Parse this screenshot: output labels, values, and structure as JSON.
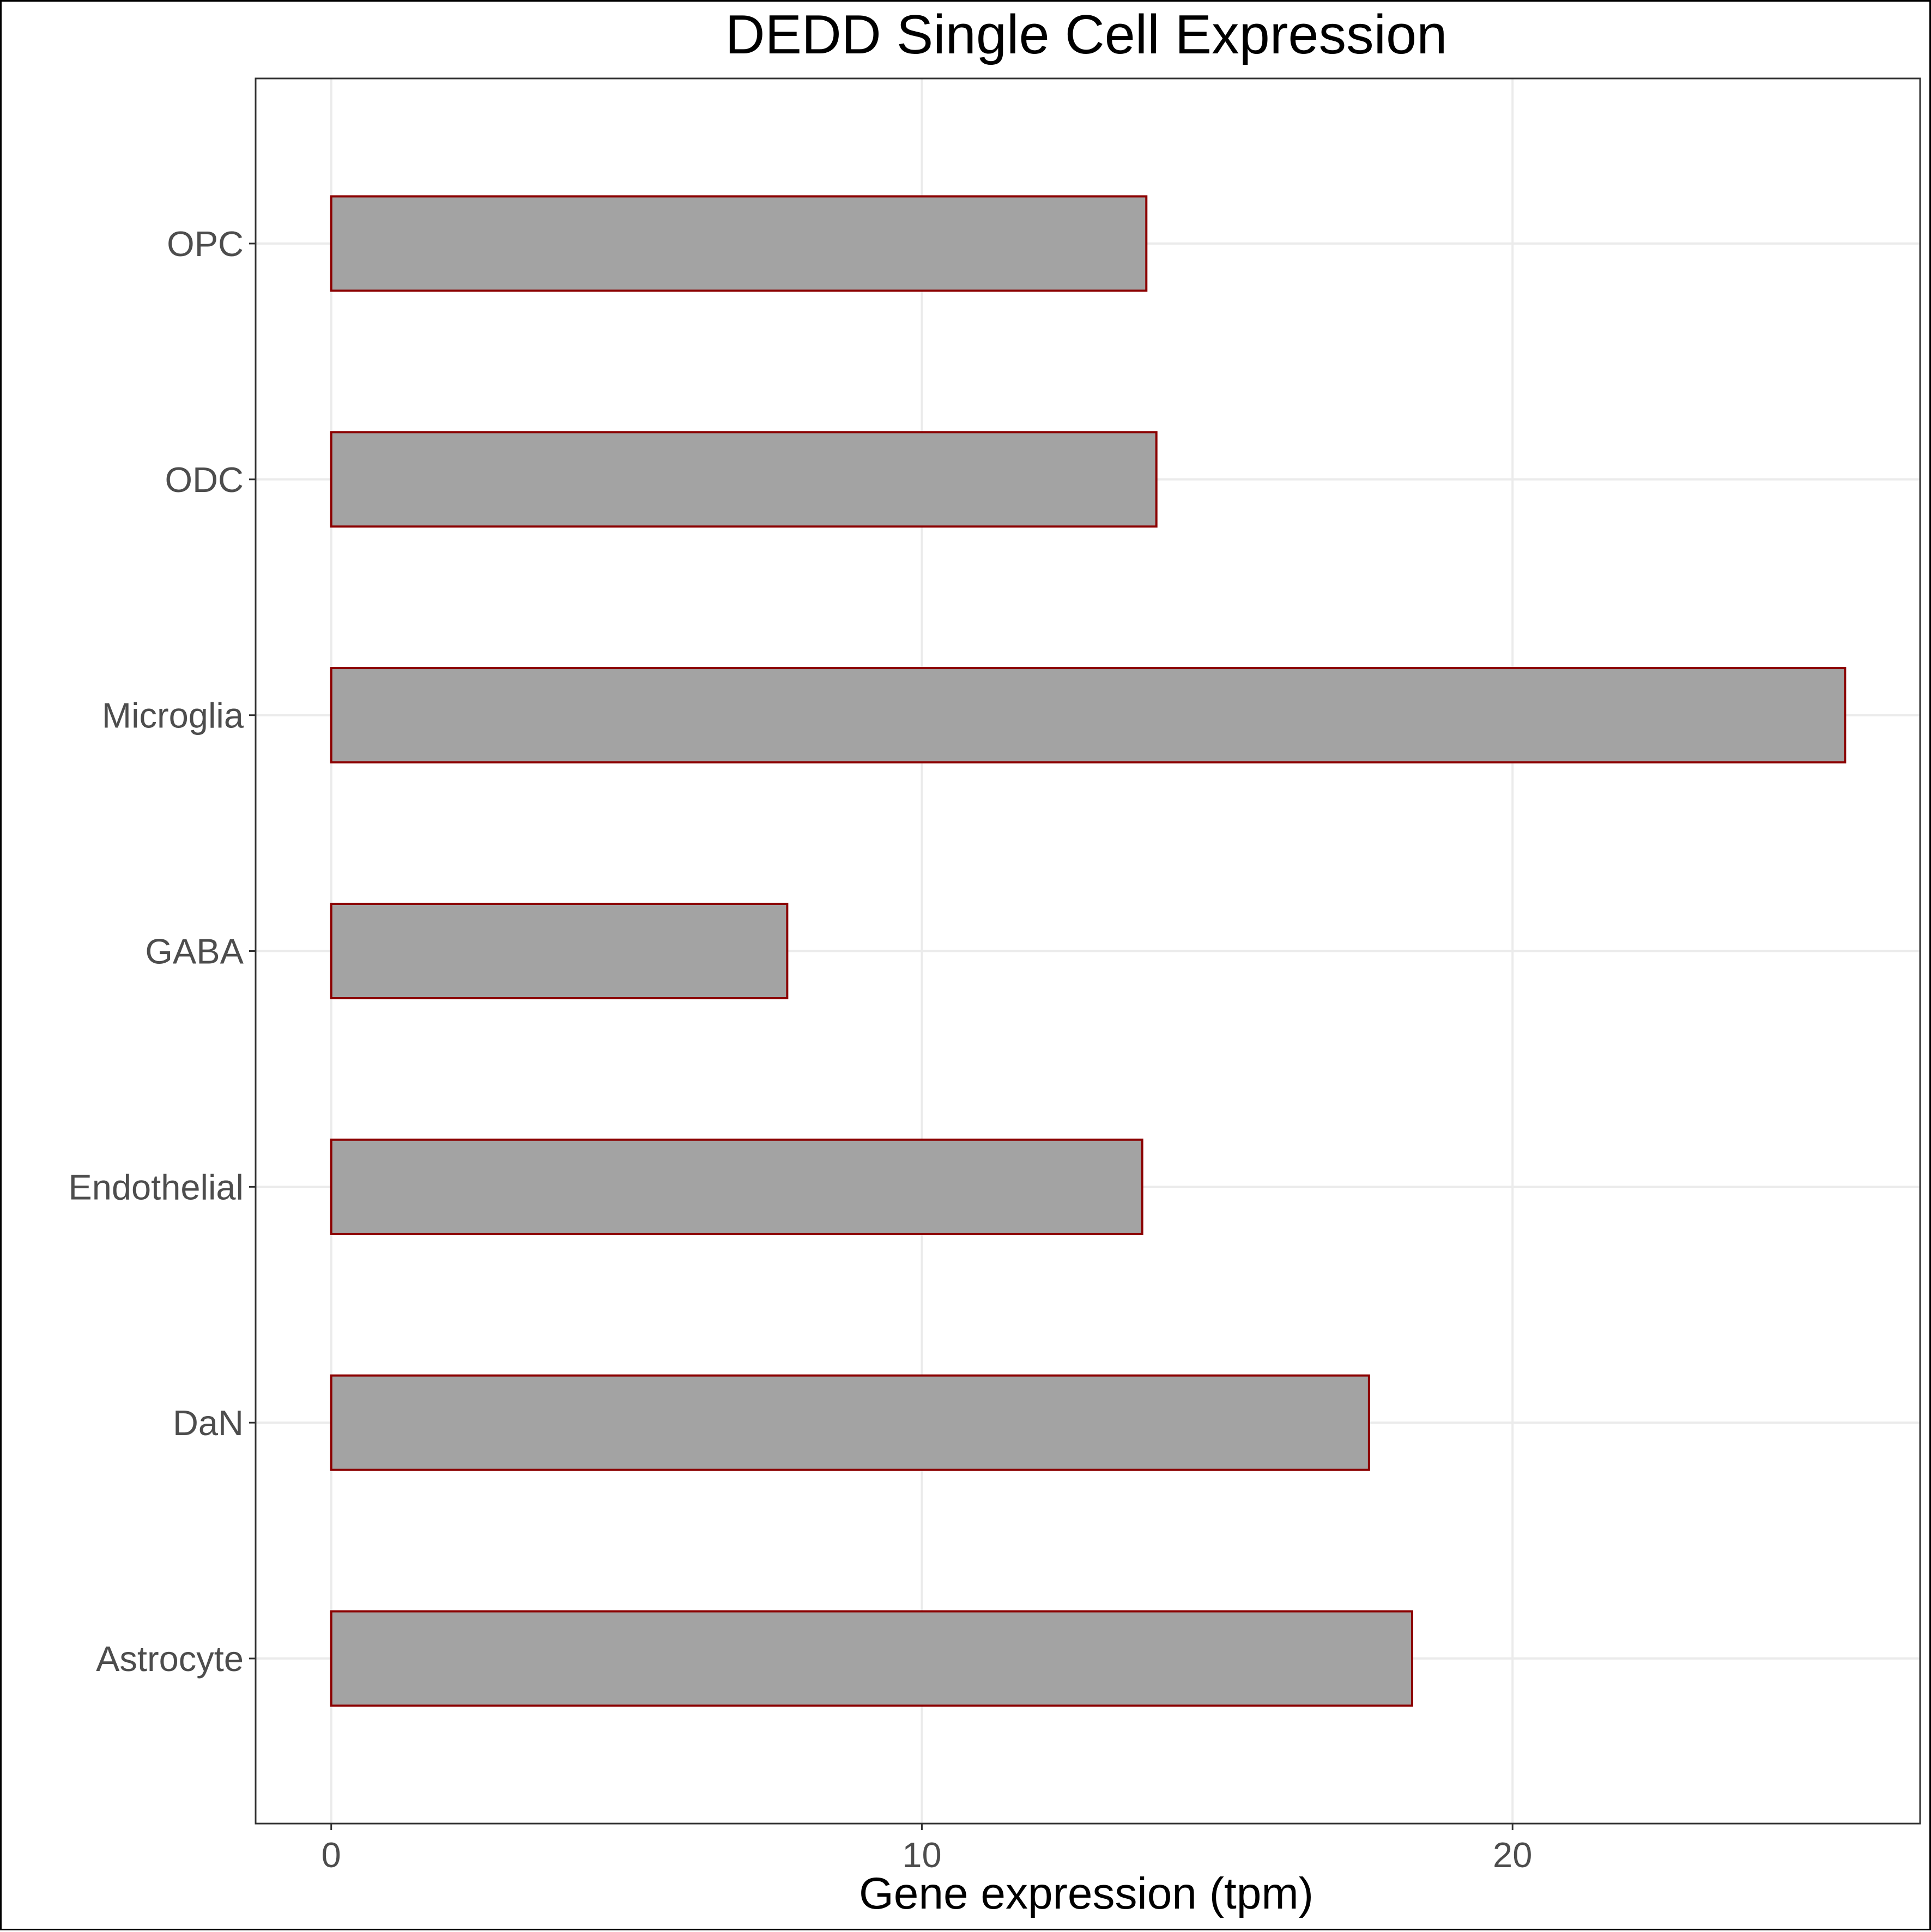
{
  "chart_data": {
    "type": "bar",
    "orientation": "horizontal",
    "title": "DEDD Single Cell Expression",
    "xlabel": "Gene expression (tpm)",
    "ylabel": "",
    "categories": [
      "Astrocyte",
      "DaN",
      "Endothelial",
      "GABA",
      "Microglia",
      "ODC",
      "OPC"
    ],
    "values": [
      18.3,
      17.57,
      13.73,
      7.72,
      25.63,
      13.97,
      13.8
    ],
    "xlim": [
      -1.28,
      26.9
    ],
    "xticks": [
      0,
      10,
      20
    ],
    "xtick_labels": [
      "0",
      "10",
      "20"
    ],
    "grid": true,
    "legend": "none",
    "bar_fill_color": "#a3a3a3",
    "bar_stroke_color": "#8b0000",
    "grid_color": "#ebebeb",
    "panel_border_color": "#333333"
  }
}
